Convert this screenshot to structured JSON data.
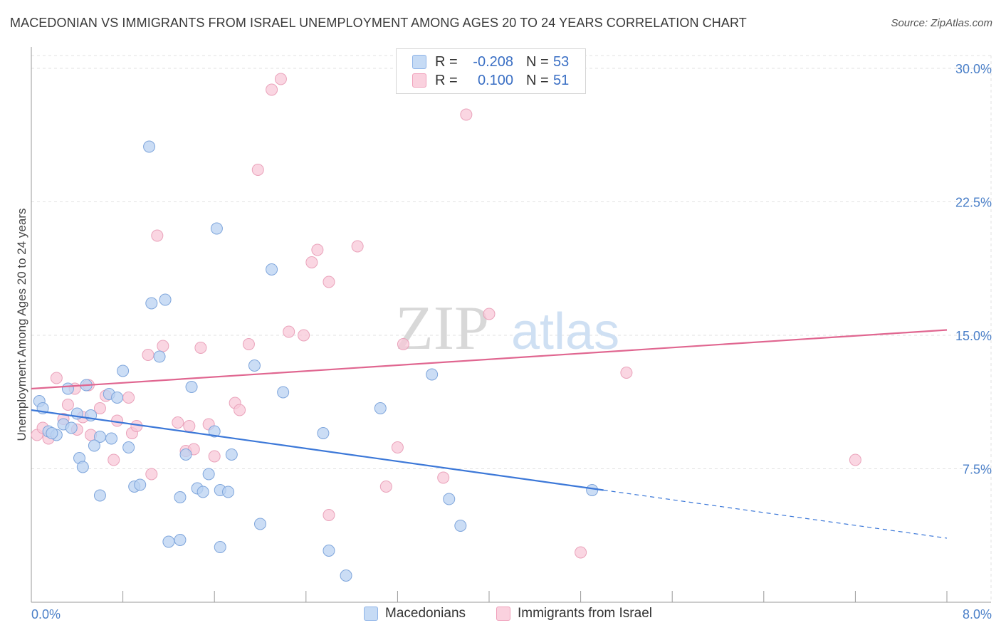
{
  "title": "MACEDONIAN VS IMMIGRANTS FROM ISRAEL UNEMPLOYMENT AMONG AGES 20 TO 24 YEARS CORRELATION CHART",
  "source": "Source: ZipAtlas.com",
  "watermark": {
    "zip": "ZIP",
    "atlas": "atlas"
  },
  "legend": {
    "rows": [
      {
        "r_label": "R =",
        "r_value": "-0.208",
        "n_label": "N =",
        "n_value": "53",
        "color": "#8fb4e8",
        "fill": "#c6dbf5"
      },
      {
        "r_label": "R =",
        "r_value": "0.100",
        "n_label": "N =",
        "n_value": "51",
        "color": "#f0a0bb",
        "fill": "#fad1de"
      }
    ]
  },
  "bottom_legend": {
    "macedonians": "Macedonians",
    "israel": "Immigrants from Israel"
  },
  "colors": {
    "blue": "#3c78d8",
    "blue_fill": "#b9d1f2",
    "pink": "#e06690",
    "pink_fill": "#f8c8d8",
    "tick": "#4a7fc8"
  },
  "chart_data": {
    "type": "scatter",
    "title": "MACEDONIAN VS IMMIGRANTS FROM ISRAEL UNEMPLOYMENT AMONG AGES 20 TO 24 YEARS CORRELATION CHART",
    "xlabel": "",
    "ylabel": "Unemployment Among Ages 20 to 24 years",
    "xlim": [
      0,
      8
    ],
    "ylim": [
      0,
      30
    ],
    "x_tick_labels": [
      "0.0%",
      "8.0%"
    ],
    "y_ticks": [
      7.5,
      15.0,
      22.5,
      30.0
    ],
    "y_tick_labels": [
      "7.5%",
      "15.0%",
      "22.5%",
      "30.0%"
    ],
    "grid": true,
    "series": [
      {
        "name": "Macedonians",
        "r": -0.208,
        "n": 53,
        "trend": {
          "x0": 0.0,
          "y0": 10.8,
          "x1": 5.0,
          "y1": 6.3,
          "dash_to_x": 8.0,
          "dash_to_y": 3.6
        },
        "points": [
          [
            0.07,
            11.3
          ],
          [
            0.1,
            10.9
          ],
          [
            0.15,
            9.6
          ],
          [
            0.22,
            9.4
          ],
          [
            0.18,
            9.5
          ],
          [
            0.28,
            10.0
          ],
          [
            0.35,
            9.8
          ],
          [
            0.4,
            10.6
          ],
          [
            0.32,
            12.0
          ],
          [
            0.48,
            12.2
          ],
          [
            0.42,
            8.1
          ],
          [
            0.45,
            7.6
          ],
          [
            0.6,
            9.3
          ],
          [
            0.55,
            8.8
          ],
          [
            0.52,
            10.5
          ],
          [
            0.7,
            9.2
          ],
          [
            0.68,
            11.7
          ],
          [
            0.75,
            11.5
          ],
          [
            0.8,
            13.0
          ],
          [
            0.85,
            8.7
          ],
          [
            0.9,
            6.5
          ],
          [
            0.95,
            6.6
          ],
          [
            1.05,
            16.8
          ],
          [
            1.12,
            13.8
          ],
          [
            1.17,
            17.0
          ],
          [
            1.3,
            5.9
          ],
          [
            1.35,
            8.3
          ],
          [
            1.4,
            12.1
          ],
          [
            1.45,
            6.4
          ],
          [
            1.5,
            6.2
          ],
          [
            1.55,
            7.2
          ],
          [
            1.6,
            9.6
          ],
          [
            1.65,
            6.3
          ],
          [
            1.62,
            21.0
          ],
          [
            1.72,
            6.2
          ],
          [
            1.75,
            8.3
          ],
          [
            1.95,
            13.3
          ],
          [
            2.0,
            4.4
          ],
          [
            2.1,
            18.7
          ],
          [
            2.2,
            11.8
          ],
          [
            2.55,
            9.5
          ],
          [
            2.6,
            2.9
          ],
          [
            2.75,
            1.5
          ],
          [
            3.05,
            10.9
          ],
          [
            3.5,
            12.8
          ],
          [
            3.65,
            5.8
          ],
          [
            3.75,
            4.3
          ],
          [
            1.03,
            25.6
          ],
          [
            0.6,
            6.0
          ],
          [
            1.3,
            3.5
          ],
          [
            1.2,
            3.4
          ],
          [
            1.65,
            3.1
          ],
          [
            4.9,
            6.3
          ]
        ]
      },
      {
        "name": "Immigrants from Israel",
        "r": 0.1,
        "n": 51,
        "trend": {
          "x0": 0.0,
          "y0": 12.0,
          "x1": 8.0,
          "y1": 15.3
        },
        "points": [
          [
            0.05,
            9.4
          ],
          [
            0.1,
            9.8
          ],
          [
            0.15,
            9.2
          ],
          [
            0.22,
            12.6
          ],
          [
            0.28,
            10.3
          ],
          [
            0.32,
            11.1
          ],
          [
            0.38,
            12.0
          ],
          [
            0.4,
            9.7
          ],
          [
            0.45,
            10.4
          ],
          [
            0.5,
            12.2
          ],
          [
            0.52,
            9.4
          ],
          [
            0.6,
            10.9
          ],
          [
            0.65,
            11.6
          ],
          [
            0.72,
            8.0
          ],
          [
            0.75,
            10.2
          ],
          [
            0.85,
            11.5
          ],
          [
            0.88,
            9.5
          ],
          [
            0.92,
            9.9
          ],
          [
            1.02,
            13.9
          ],
          [
            1.05,
            7.2
          ],
          [
            1.1,
            20.6
          ],
          [
            1.15,
            14.4
          ],
          [
            1.28,
            10.1
          ],
          [
            1.35,
            8.5
          ],
          [
            1.38,
            9.9
          ],
          [
            1.42,
            8.6
          ],
          [
            1.48,
            14.3
          ],
          [
            1.55,
            10.0
          ],
          [
            1.6,
            8.2
          ],
          [
            1.78,
            11.2
          ],
          [
            1.82,
            10.8
          ],
          [
            1.9,
            14.5
          ],
          [
            1.98,
            24.3
          ],
          [
            2.1,
            28.8
          ],
          [
            2.18,
            29.4
          ],
          [
            2.25,
            15.2
          ],
          [
            2.38,
            15.0
          ],
          [
            2.45,
            19.1
          ],
          [
            2.5,
            19.8
          ],
          [
            2.6,
            18.0
          ],
          [
            2.6,
            4.9
          ],
          [
            2.85,
            20.0
          ],
          [
            3.1,
            6.5
          ],
          [
            3.2,
            8.7
          ],
          [
            3.25,
            14.5
          ],
          [
            3.6,
            7.0
          ],
          [
            3.8,
            27.4
          ],
          [
            4.0,
            16.2
          ],
          [
            4.8,
            2.8
          ],
          [
            5.2,
            12.9
          ],
          [
            7.2,
            8.0
          ]
        ]
      }
    ]
  }
}
